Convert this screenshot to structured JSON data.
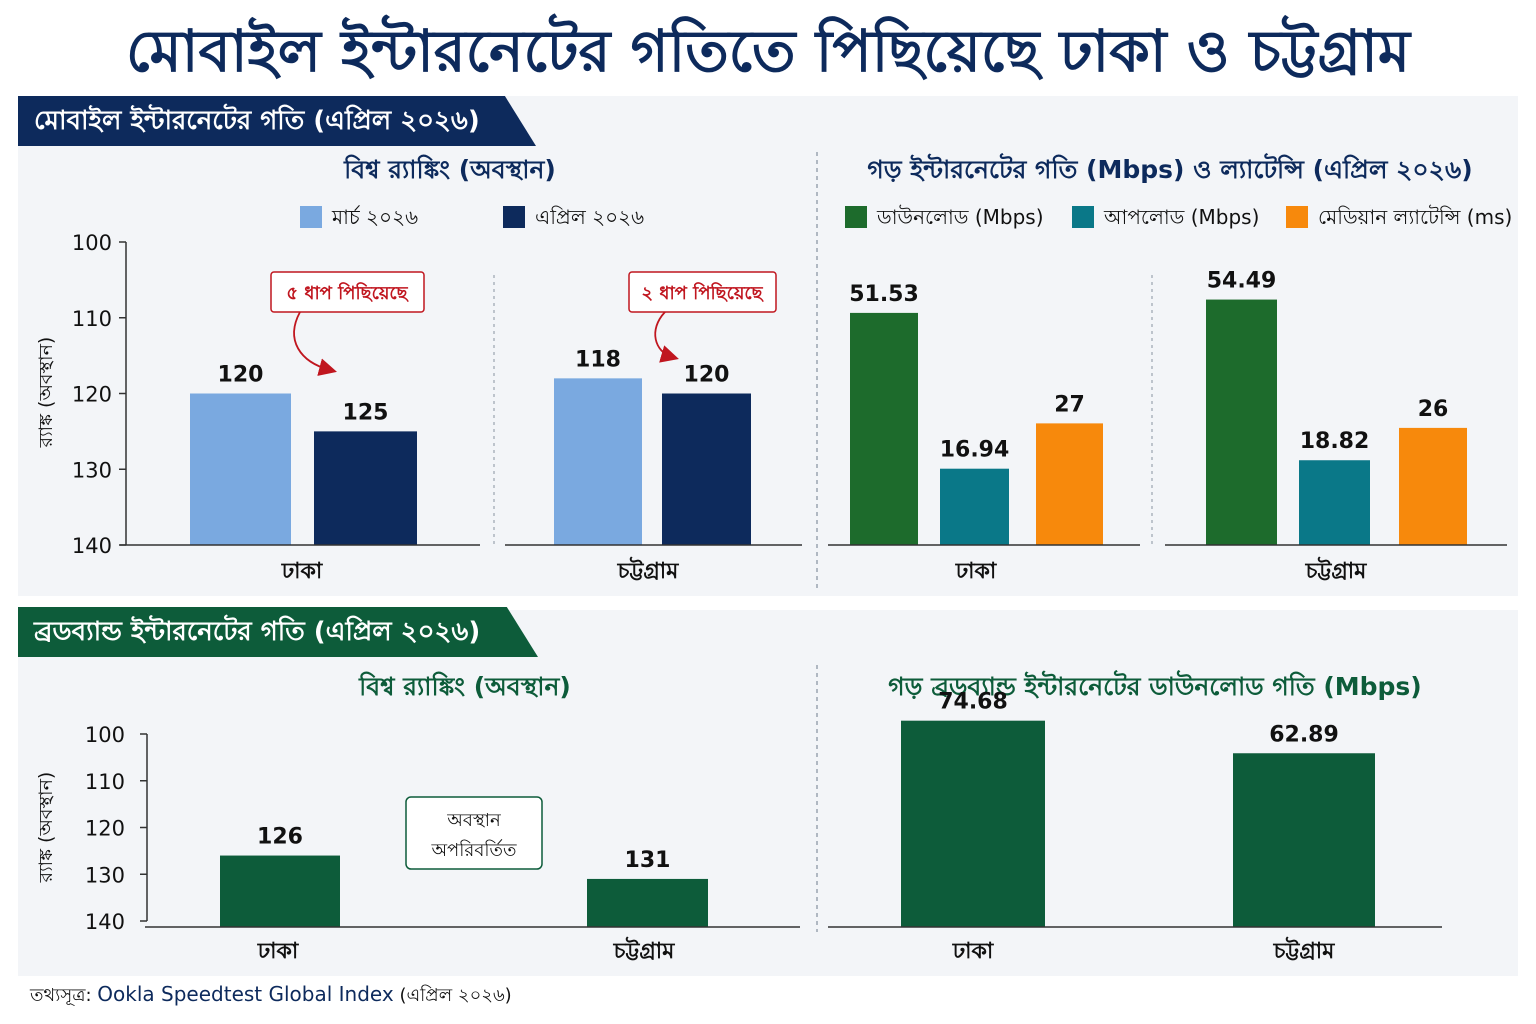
{
  "header": {
    "title": "মোবাইল ইন্টারনেটের গতিতে পিছিয়েছে ঢাকা ও চট্টগ্রাম"
  },
  "mobile_section": {
    "banner": "মোবাইল ইন্টারনেটের গতি (এপ্রিল ২০২৬)",
    "ranking_title": "বিশ্ব র‍্যাঙ্কিং (অবস্থান)",
    "speed_title": "গড় ইন্টারনেটের গতি (Mbps) ও ল্যাটেন্সি (এপ্রিল ২০২৬)",
    "ranking_legend": [
      "মার্চ ২০২৬",
      "এপ্রিল ২০২৬"
    ],
    "speed_legend": [
      "ডাউনলোড (Mbps)",
      "আপলোড (Mbps)",
      "মেডিয়ান ল্যাটেন্সি (ms)"
    ]
  },
  "broadband_section": {
    "banner": "ব্রডব্যান্ড ইন্টারনেটের গতি (এপ্রিল ২০২৬)",
    "ranking_title": "বিশ্ব র‍্যাঙ্কিং (অবস্থান)",
    "speed_title": "গড় ব্রডব্যান্ড ইন্টারনেটের ডাউনলোড গতি (Mbps)"
  },
  "source": {
    "label": "তথ্যসূত্র:",
    "name": "Ookla Speedtest Global Index",
    "date": "(এপ্রিল ২০২৬)"
  },
  "colors": {
    "march": "#7aa9e0",
    "april": "#0d2a5c",
    "download": "#1d6b2c",
    "upload": "#0a7888",
    "latency": "#f7890c",
    "broadband": "#0d5c3a",
    "note_red": "#c0161f"
  },
  "chart_data": [
    {
      "type": "bar",
      "categories": [
        "ঢাকা",
        "চট্টগ্রাম"
      ],
      "series": [
        {
          "name": "মার্চ ২০২৬",
          "values": [
            120,
            118
          ]
        },
        {
          "name": "এপ্রিল ২০২৬",
          "values": [
            125,
            120
          ]
        }
      ],
      "ylabel": "র‍্যাঙ্ক (অবস্থান)",
      "ylim": [
        100,
        140
      ],
      "yticks": [
        "100",
        "110",
        "120",
        "130",
        "140"
      ],
      "y_inverted": true,
      "annotations": [
        "৫ ধাপ পিছিয়েছে",
        "২ ধাপ পিছিয়েছে"
      ],
      "legend": "top"
    },
    {
      "type": "bar",
      "categories": [
        "ঢাকা",
        "চট্টগ্রাম"
      ],
      "series": [
        {
          "name": "ডাউনলোড (Mbps)",
          "values": [
            51.53,
            54.49
          ]
        },
        {
          "name": "আপলোড (Mbps)",
          "values": [
            16.94,
            18.82
          ]
        },
        {
          "name": "মেডিয়ান ল্যাটেন্সি (ms)",
          "values": [
            27,
            26
          ]
        }
      ],
      "legend": "top",
      "grid": false
    },
    {
      "type": "bar",
      "categories": [
        "ঢাকা",
        "চট্টগ্রাম"
      ],
      "series": [
        {
          "name": "",
          "values": [
            126,
            131
          ]
        }
      ],
      "ylabel": "র‍্যাঙ্ক (অবস্থান)",
      "ylim": [
        100,
        140
      ],
      "yticks": [
        "100",
        "110",
        "120",
        "130",
        "140"
      ],
      "y_inverted": true,
      "annotations": [
        "অবস্থান",
        "অপরিবর্তিত"
      ]
    },
    {
      "type": "bar",
      "categories": [
        "ঢাকা",
        "চট্টগ্রাম"
      ],
      "series": [
        {
          "name": "",
          "values": [
            74.68,
            62.89
          ]
        }
      ],
      "grid": false
    }
  ]
}
